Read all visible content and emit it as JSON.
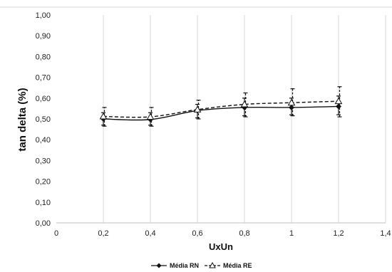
{
  "chart_data": {
    "type": "line",
    "title": "",
    "xlabel": "UxUn",
    "ylabel": "tan delta (%)",
    "xlim": [
      0,
      1.4
    ],
    "ylim": [
      0,
      1.0
    ],
    "x_ticks": [
      "0",
      "0,2",
      "0,4",
      "0,6",
      "0,8",
      "1",
      "1,2",
      "1,4"
    ],
    "y_ticks": [
      "0,00",
      "0,10",
      "0,20",
      "0,30",
      "0,40",
      "0,50",
      "0,60",
      "0,70",
      "0,80",
      "0,90",
      "1,00"
    ],
    "grid": "vertical",
    "legend_position": "bottom",
    "series": [
      {
        "name": "Média RN",
        "style": "solid",
        "marker": "diamond",
        "x": [
          0.2,
          0.4,
          0.6,
          0.8,
          1.0,
          1.2
        ],
        "y": [
          0.5,
          0.497,
          0.54,
          0.555,
          0.555,
          0.56
        ],
        "err_low": [
          0.47,
          0.47,
          0.505,
          0.515,
          0.52,
          0.52
        ],
        "err_high": [
          0.53,
          0.53,
          0.57,
          0.6,
          0.6,
          0.61
        ]
      },
      {
        "name": "Média RE",
        "style": "dashed",
        "marker": "triangle",
        "x": [
          0.2,
          0.4,
          0.6,
          0.8,
          1.0,
          1.2
        ],
        "y": [
          0.512,
          0.51,
          0.545,
          0.57,
          0.578,
          0.585
        ],
        "err_low": [
          0.465,
          0.465,
          0.5,
          0.51,
          0.515,
          0.51
        ],
        "err_high": [
          0.555,
          0.555,
          0.59,
          0.625,
          0.645,
          0.655
        ]
      }
    ]
  }
}
